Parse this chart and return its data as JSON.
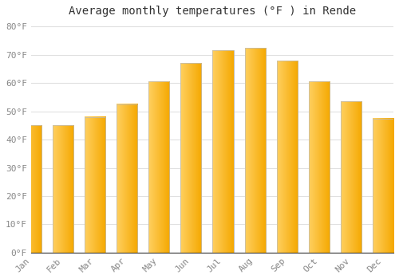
{
  "title": "Average monthly temperatures (°F ) in Rende",
  "months": [
    "Jan",
    "Feb",
    "Mar",
    "Apr",
    "May",
    "Jun",
    "Jul",
    "Aug",
    "Sep",
    "Oct",
    "Nov",
    "Dec"
  ],
  "values": [
    45.0,
    45.0,
    48.0,
    52.5,
    60.5,
    67.0,
    71.5,
    72.5,
    68.0,
    60.5,
    53.5,
    47.5
  ],
  "bar_color_left": "#FFD060",
  "bar_color_right": "#F5A800",
  "bar_edge_color": "#BBBBBB",
  "background_color": "#FFFFFF",
  "plot_bg_color": "#FFFFFF",
  "grid_color": "#E0E0E0",
  "ylim": [
    0,
    82
  ],
  "yticks": [
    0,
    10,
    20,
    30,
    40,
    50,
    60,
    70,
    80
  ],
  "ytick_labels": [
    "0°F",
    "10°F",
    "20°F",
    "30°F",
    "40°F",
    "50°F",
    "60°F",
    "70°F",
    "80°F"
  ],
  "title_fontsize": 10,
  "tick_fontsize": 8,
  "tick_color": "#888888",
  "spine_color": "#333333",
  "bar_width": 0.65
}
